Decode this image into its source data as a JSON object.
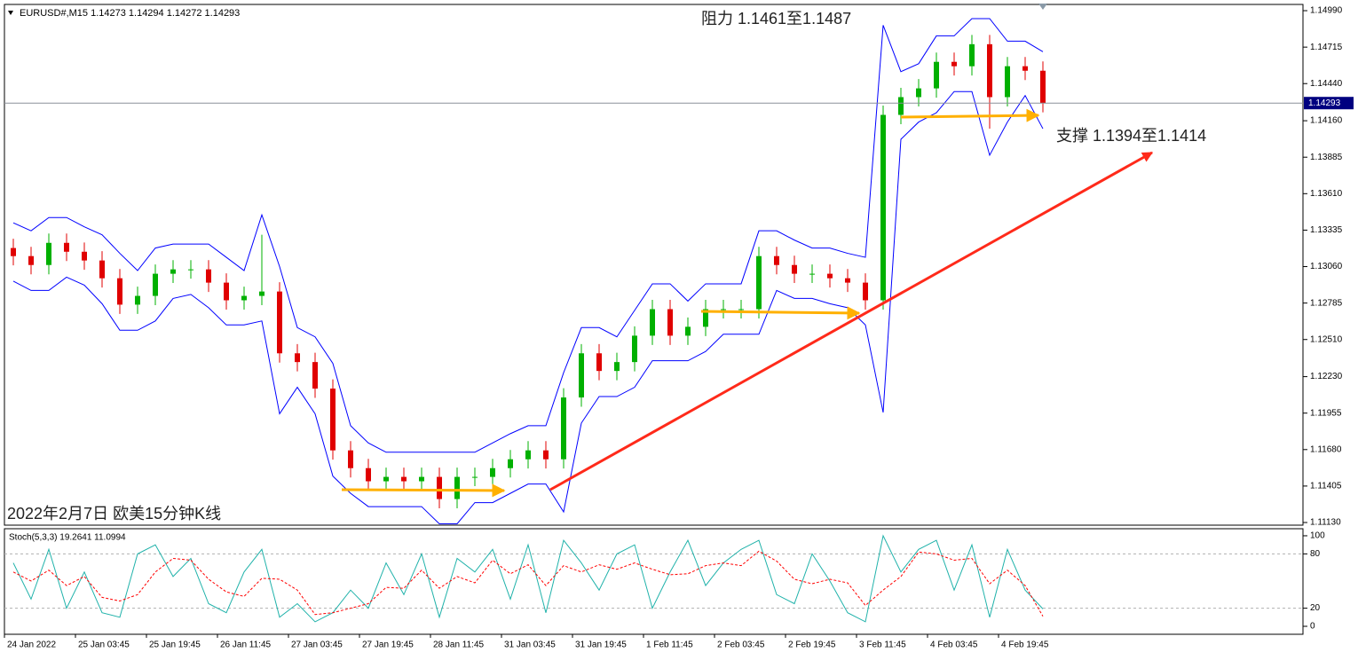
{
  "chart_data": [
    {
      "type": "candlestick",
      "header": "EURUSD#,M15  1.14273 1.14294 1.14272 1.14293",
      "annotations": [
        "阻力 1.1461至1.1487",
        "支撑 1.1394至1.1414",
        "2022年2月7日 欧美15分钟K线"
      ],
      "categories": [
        "24 Jan 2022",
        null,
        null,
        null,
        "25 Jan 03:45",
        null,
        null,
        null,
        "25 Jan 19:45",
        null,
        null,
        null,
        "26 Jan 11:45",
        null,
        null,
        null,
        "27 Jan 03:45",
        null,
        null,
        null,
        "27 Jan 19:45",
        null,
        null,
        null,
        "28 Jan 11:45",
        null,
        null,
        null,
        "31 Jan 03:45",
        null,
        null,
        null,
        "31 Jan 19:45",
        null,
        null,
        null,
        "1 Feb 11:45",
        null,
        null,
        null,
        "2 Feb 03:45",
        null,
        null,
        null,
        "2 Feb 19:45",
        null,
        null,
        null,
        "3 Feb 11:45",
        null,
        null,
        null,
        "4 Feb 03:45",
        null,
        null,
        null,
        "4 Feb 19:45",
        null,
        null
      ],
      "open": [
        1.132,
        1.13139,
        1.13072,
        1.13239,
        1.13172,
        1.13106,
        1.12972,
        1.12773,
        1.12839,
        1.13006,
        1.13039,
        1.13039,
        1.12939,
        1.12806,
        1.12839,
        1.12872,
        1.12406,
        1.1234,
        1.1214,
        1.11674,
        1.1154,
        1.11441,
        1.11474,
        1.11441,
        1.11474,
        1.11307,
        1.11474,
        1.11474,
        1.1154,
        1.11607,
        1.11674,
        1.11607,
        1.12073,
        1.12406,
        1.12273,
        1.1234,
        1.12539,
        1.12739,
        1.12539,
        1.12606,
        1.12739,
        1.12739,
        1.12739,
        1.13139,
        1.13072,
        1.13006,
        1.13006,
        1.12972,
        1.12939,
        1.12806,
        1.14204,
        1.14338,
        1.14404,
        1.14604,
        1.14571,
        1.14737,
        1.14338,
        1.14571,
        1.14537
      ],
      "high": [
        1.1327,
        1.13209,
        1.13309,
        1.13309,
        1.13242,
        1.13176,
        1.13042,
        1.12909,
        1.13076,
        1.13109,
        1.13109,
        1.13109,
        1.13009,
        1.12909,
        1.133,
        1.12942,
        1.12476,
        1.1241,
        1.1221,
        1.11744,
        1.1161,
        1.11544,
        1.11544,
        1.11544,
        1.11544,
        1.11544,
        1.11544,
        1.1161,
        1.11677,
        1.11744,
        1.11744,
        1.12143,
        1.12476,
        1.12476,
        1.1241,
        1.12609,
        1.12809,
        1.12809,
        1.12676,
        1.12809,
        1.12809,
        1.12809,
        1.13209,
        1.13209,
        1.13142,
        1.13076,
        1.13076,
        1.13042,
        1.13009,
        1.14274,
        1.14408,
        1.14474,
        1.14674,
        1.14674,
        1.14807,
        1.14807,
        1.14641,
        1.14641,
        1.14607
      ],
      "low": [
        1.13069,
        1.13002,
        1.13002,
        1.13102,
        1.13036,
        1.12902,
        1.12703,
        1.12703,
        1.12769,
        1.12936,
        1.12969,
        1.12869,
        1.12736,
        1.12736,
        1.12769,
        1.12336,
        1.1227,
        1.1207,
        1.11604,
        1.1147,
        1.11371,
        1.11371,
        1.11371,
        1.11371,
        1.11237,
        1.11237,
        1.11404,
        1.11404,
        1.1147,
        1.11537,
        1.11537,
        1.11537,
        1.12003,
        1.12203,
        1.12203,
        1.1227,
        1.12469,
        1.12469,
        1.12469,
        1.12536,
        1.12669,
        1.12669,
        1.12669,
        1.13002,
        1.12936,
        1.12936,
        1.12902,
        1.12869,
        1.12736,
        1.12736,
        1.14134,
        1.14268,
        1.14334,
        1.14501,
        1.14501,
        1.141,
        1.14268,
        1.14467,
        1.14223
      ],
      "close": [
        1.13139,
        1.13072,
        1.13239,
        1.13172,
        1.13106,
        1.12972,
        1.12773,
        1.12839,
        1.13006,
        1.13039,
        1.13039,
        1.12939,
        1.12806,
        1.12839,
        1.12872,
        1.12406,
        1.1234,
        1.1214,
        1.11674,
        1.1154,
        1.11441,
        1.11474,
        1.11441,
        1.11474,
        1.11307,
        1.11474,
        1.11474,
        1.1154,
        1.11607,
        1.11674,
        1.11607,
        1.12073,
        1.12406,
        1.12273,
        1.1234,
        1.12539,
        1.12739,
        1.12539,
        1.12606,
        1.12739,
        1.12739,
        1.12739,
        1.13139,
        1.13072,
        1.13006,
        1.13006,
        1.12972,
        1.12939,
        1.12806,
        1.14204,
        1.14338,
        1.14404,
        1.14604,
        1.14571,
        1.14737,
        1.14338,
        1.14571,
        1.14537,
        1.14293
      ],
      "up_color": "#00b000",
      "down_color": "#e00000",
      "overlays": [
        {
          "color": "#0000ff",
          "values": [
            1.1339,
            1.1333,
            1.1343,
            1.1343,
            1.1336,
            1.133,
            1.1316,
            1.1303,
            1.132,
            1.1323,
            1.1323,
            1.1323,
            1.1313,
            1.1303,
            1.1345,
            1.1306,
            1.126,
            1.1253,
            1.1233,
            1.1186,
            1.1173,
            1.1166,
            1.1166,
            1.1166,
            1.1166,
            1.1166,
            1.1166,
            1.1173,
            1.118,
            1.1186,
            1.1186,
            1.1226,
            1.126,
            1.126,
            1.1253,
            1.1273,
            1.1293,
            1.1293,
            1.128,
            1.1293,
            1.1293,
            1.1293,
            1.1333,
            1.1333,
            1.1326,
            1.132,
            1.132,
            1.1316,
            1.1313,
            1.1488,
            1.1453,
            1.1459,
            1.148,
            1.148,
            1.1493,
            1.1493,
            1.1476,
            1.1476,
            1.1468
          ]
        },
        {
          "color": "#0000ff",
          "values": [
            1.1295,
            1.1288,
            1.1288,
            1.1298,
            1.1292,
            1.1278,
            1.1258,
            1.1258,
            1.1265,
            1.1282,
            1.1285,
            1.1275,
            1.1262,
            1.1262,
            1.1265,
            1.1195,
            1.1215,
            1.1195,
            1.1148,
            1.1135,
            1.1125,
            1.1125,
            1.1125,
            1.1125,
            1.1112,
            1.1112,
            1.1128,
            1.1128,
            1.1135,
            1.1142,
            1.1142,
            1.1121,
            1.1188,
            1.1208,
            1.1208,
            1.1215,
            1.1235,
            1.1235,
            1.1235,
            1.1242,
            1.1255,
            1.1255,
            1.1255,
            1.1288,
            1.1282,
            1.1282,
            1.1278,
            1.1275,
            1.1262,
            1.1196,
            1.1402,
            1.1415,
            1.1422,
            1.1438,
            1.1438,
            1.139,
            1.1415,
            1.1435,
            1.141
          ]
        }
      ],
      "last_price": 1.14293,
      "ylim": [
        1.1111,
        1.15037
      ],
      "yticks": [
        {
          "value": 1.1499,
          "label": "1.14990"
        },
        1.14715,
        {
          "value": 1.1444,
          "label": "1.14440"
        },
        {
          "value": 1.1416,
          "label": "1.14160"
        },
        1.13885,
        {
          "value": 1.1361,
          "label": "1.13610"
        },
        1.13335,
        {
          "value": 1.1306,
          "label": "1.13060"
        },
        1.12785,
        {
          "value": 1.1251,
          "label": "1.12510"
        },
        {
          "value": 1.1223,
          "label": "1.12230"
        },
        1.11955,
        {
          "value": 1.1168,
          "label": "1.11680"
        },
        1.11405,
        {
          "value": 1.1113,
          "label": "1.11130"
        }
      ],
      "grid": false
    },
    {
      "type": "line",
      "title": "Stoch(5,3,3) 19.2641 11.0994",
      "series": [
        {
          "color": "#20b2aa",
          "values": [
            70,
            30,
            85,
            20,
            60,
            15,
            10,
            80,
            90,
            55,
            75,
            25,
            15,
            60,
            85,
            10,
            25,
            5,
            15,
            40,
            20,
            70,
            35,
            80,
            10,
            75,
            60,
            85,
            30,
            90,
            15,
            95,
            70,
            40,
            80,
            90,
            20,
            60,
            95,
            45,
            70,
            85,
            95,
            35,
            25,
            80,
            50,
            15,
            5,
            100,
            60,
            85,
            95,
            40,
            90,
            10,
            85,
            40,
            19.2641
          ]
        },
        {
          "color": "#ff0000",
          "dashed": true,
          "values": [
            60,
            50,
            62,
            45,
            55,
            32,
            28,
            35,
            60,
            75,
            73,
            52,
            38,
            33,
            53,
            52,
            40,
            13,
            15,
            20,
            25,
            43,
            42,
            62,
            42,
            55,
            48,
            73,
            58,
            68,
            45,
            67,
            60,
            68,
            63,
            70,
            63,
            57,
            58,
            67,
            70,
            67,
            83,
            72,
            52,
            47,
            52,
            48,
            23,
            40,
            55,
            82,
            80,
            73,
            75,
            47,
            62,
            45,
            11.0994
          ]
        }
      ],
      "ylim": [
        -8.8,
        107.8
      ],
      "yticks": [
        0,
        20,
        80,
        100
      ],
      "levels": [
        20,
        80
      ]
    }
  ]
}
